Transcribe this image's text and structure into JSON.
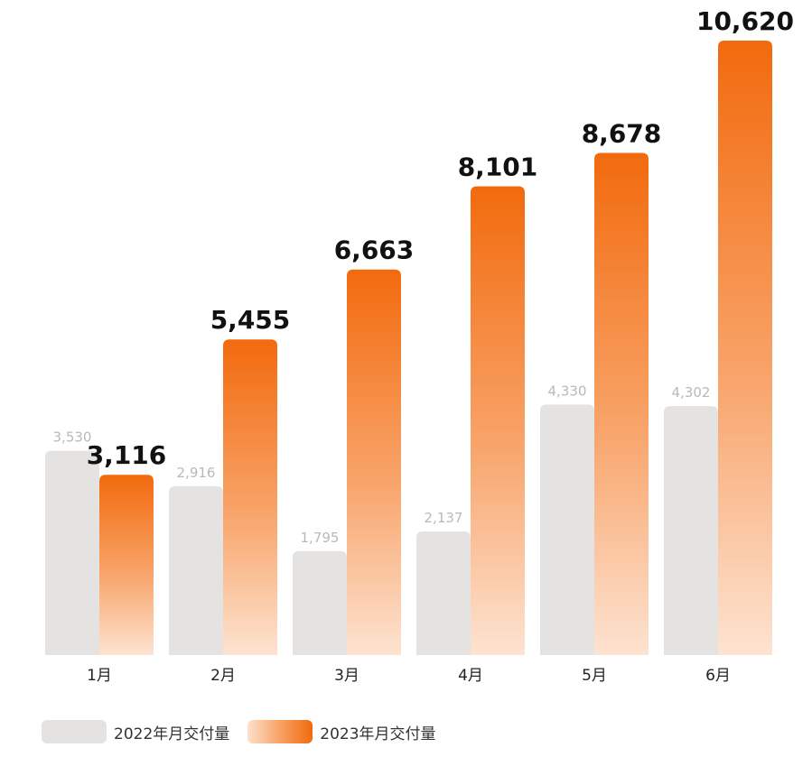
{
  "chart_data": {
    "type": "bar",
    "categories": [
      "1月",
      "2月",
      "3月",
      "4月",
      "5月",
      "6月"
    ],
    "series": [
      {
        "name": "2022年月交付量",
        "values": [
          3530,
          2916,
          1795,
          2137,
          4330,
          4302
        ],
        "labels": [
          "3,530",
          "2,916",
          "1,795",
          "2,137",
          "4,330",
          "4,302"
        ],
        "color": "#e4e3e1"
      },
      {
        "name": "2023年月交付量",
        "values": [
          3116,
          5455,
          6663,
          8101,
          8678,
          10620
        ],
        "labels": [
          "3,116",
          "5,455",
          "6,663",
          "8,101",
          "8,678",
          "10,620"
        ],
        "color": "#f26a0d",
        "gradient_light": "#fde0cc"
      }
    ],
    "ylim": [
      0,
      12000
    ],
    "grid": false,
    "legend": "bottom-left"
  }
}
